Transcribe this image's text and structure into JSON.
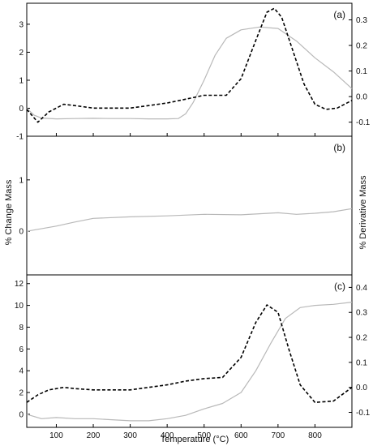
{
  "colors": {
    "mass_line": "#b8b8b8",
    "derivative_line": "#000000",
    "frame": "#000000"
  },
  "figure": {
    "xlabel": "Temperature (°C)",
    "ylabel_left": "% Change Mass",
    "ylabel_right": "% Derivative Mass"
  },
  "chart_data": [
    {
      "type": "line",
      "panel_label": "(a)",
      "xlim": [
        20,
        900
      ],
      "x_ticks": [
        100,
        200,
        300,
        400,
        500,
        600,
        700,
        800
      ],
      "ylim_left": [
        -1,
        3.75
      ],
      "y_ticks_left": [
        -1,
        0,
        1,
        2,
        3
      ],
      "ylim_right": [
        -0.155,
        0.365
      ],
      "y_ticks_right": [
        -0.1,
        0.0,
        0.1,
        0.2,
        0.3
      ],
      "series": [
        {
          "axis": "left",
          "style": "solid-gray",
          "x": [
            20,
            40,
            60,
            100,
            150,
            200,
            250,
            300,
            350,
            400,
            430,
            450,
            470,
            500,
            530,
            560,
            600,
            650,
            700,
            750,
            800,
            850,
            900
          ],
          "y": [
            0.0,
            -0.25,
            -0.35,
            -0.38,
            -0.37,
            -0.36,
            -0.37,
            -0.37,
            -0.38,
            -0.38,
            -0.37,
            -0.2,
            0.2,
            1.0,
            1.9,
            2.5,
            2.8,
            2.9,
            2.85,
            2.4,
            1.8,
            1.3,
            0.7
          ]
        },
        {
          "axis": "right",
          "style": "dashed-black",
          "x": [
            20,
            50,
            80,
            120,
            150,
            200,
            250,
            300,
            350,
            400,
            450,
            500,
            530,
            560,
            600,
            640,
            670,
            690,
            710,
            740,
            770,
            800,
            830,
            860,
            900
          ],
          "y": [
            -0.05,
            -0.1,
            -0.06,
            -0.03,
            -0.035,
            -0.045,
            -0.045,
            -0.045,
            -0.035,
            -0.025,
            -0.01,
            0.005,
            0.005,
            0.005,
            0.07,
            0.22,
            0.33,
            0.345,
            0.31,
            0.18,
            0.05,
            -0.03,
            -0.05,
            -0.045,
            -0.015
          ]
        }
      ]
    },
    {
      "type": "line",
      "panel_label": "(b)",
      "xlim": [
        20,
        900
      ],
      "ylim_left": [
        -0.85,
        1.85
      ],
      "y_ticks_left": [
        0,
        1
      ],
      "series": [
        {
          "axis": "left",
          "style": "solid-gray",
          "x": [
            20,
            100,
            150,
            200,
            300,
            400,
            500,
            600,
            700,
            750,
            800,
            850,
            900
          ],
          "y": [
            0.0,
            0.1,
            0.18,
            0.25,
            0.28,
            0.3,
            0.33,
            0.32,
            0.36,
            0.33,
            0.35,
            0.38,
            0.44
          ]
        }
      ]
    },
    {
      "type": "line",
      "panel_label": "(c)",
      "xlim": [
        20,
        900
      ],
      "x_ticks": [
        100,
        200,
        300,
        400,
        500,
        600,
        700,
        800
      ],
      "ylim_left": [
        -1.2,
        12.8
      ],
      "y_ticks_left": [
        0,
        2,
        4,
        6,
        8,
        10,
        12
      ],
      "ylim_right": [
        -0.16,
        0.45
      ],
      "y_ticks_right": [
        -0.1,
        0.0,
        0.1,
        0.2,
        0.3,
        0.4
      ],
      "series": [
        {
          "axis": "left",
          "style": "solid-gray",
          "x": [
            20,
            60,
            100,
            150,
            200,
            250,
            300,
            350,
            400,
            450,
            500,
            550,
            600,
            640,
            680,
            720,
            760,
            800,
            850,
            900
          ],
          "y": [
            0.0,
            -0.4,
            -0.3,
            -0.4,
            -0.4,
            -0.5,
            -0.6,
            -0.6,
            -0.4,
            -0.1,
            0.5,
            1.0,
            2.0,
            4.0,
            6.5,
            8.8,
            9.8,
            10.0,
            10.1,
            10.3
          ]
        },
        {
          "axis": "right",
          "style": "dashed-black",
          "x": [
            20,
            50,
            80,
            120,
            150,
            200,
            250,
            300,
            350,
            400,
            450,
            500,
            550,
            600,
            640,
            670,
            700,
            730,
            760,
            800,
            850,
            900
          ],
          "y": [
            -0.06,
            -0.03,
            -0.01,
            0.0,
            -0.005,
            -0.01,
            -0.01,
            -0.01,
            0.0,
            0.01,
            0.025,
            0.035,
            0.04,
            0.12,
            0.26,
            0.33,
            0.3,
            0.15,
            0.01,
            -0.06,
            -0.055,
            0.0
          ]
        }
      ]
    }
  ]
}
